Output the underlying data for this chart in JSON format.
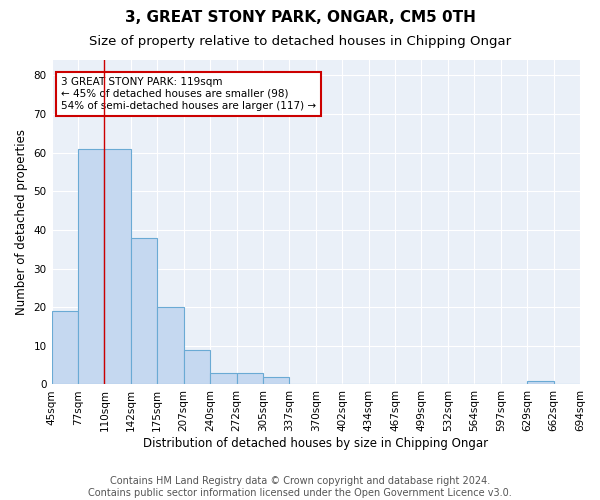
{
  "title": "3, GREAT STONY PARK, ONGAR, CM5 0TH",
  "subtitle": "Size of property relative to detached houses in Chipping Ongar",
  "xlabel": "Distribution of detached houses by size in Chipping Ongar",
  "ylabel": "Number of detached properties",
  "bar_values": [
    19,
    61,
    61,
    38,
    20,
    9,
    3,
    3,
    2,
    0,
    0,
    0,
    0,
    0,
    0,
    0,
    0,
    0,
    1,
    0
  ],
  "bin_labels": [
    "45sqm",
    "77sqm",
    "110sqm",
    "142sqm",
    "175sqm",
    "207sqm",
    "240sqm",
    "272sqm",
    "305sqm",
    "337sqm",
    "370sqm",
    "402sqm",
    "434sqm",
    "467sqm",
    "499sqm",
    "532sqm",
    "564sqm",
    "597sqm",
    "629sqm",
    "662sqm",
    "694sqm"
  ],
  "bar_color": "#c5d8f0",
  "bar_edge_color": "#6aaad4",
  "bg_color": "#eaf0f8",
  "grid_color": "#ffffff",
  "red_line_x": 2,
  "annotation_text": "3 GREAT STONY PARK: 119sqm\n← 45% of detached houses are smaller (98)\n54% of semi-detached houses are larger (117) →",
  "annotation_box_color": "#ffffff",
  "annotation_box_edge": "#cc0000",
  "ylim": [
    0,
    84
  ],
  "yticks": [
    0,
    10,
    20,
    30,
    40,
    50,
    60,
    70,
    80
  ],
  "footer": "Contains HM Land Registry data © Crown copyright and database right 2024.\nContains public sector information licensed under the Open Government Licence v3.0.",
  "title_fontsize": 11,
  "subtitle_fontsize": 9.5,
  "label_fontsize": 8.5,
  "tick_fontsize": 7.5,
  "footer_fontsize": 7
}
